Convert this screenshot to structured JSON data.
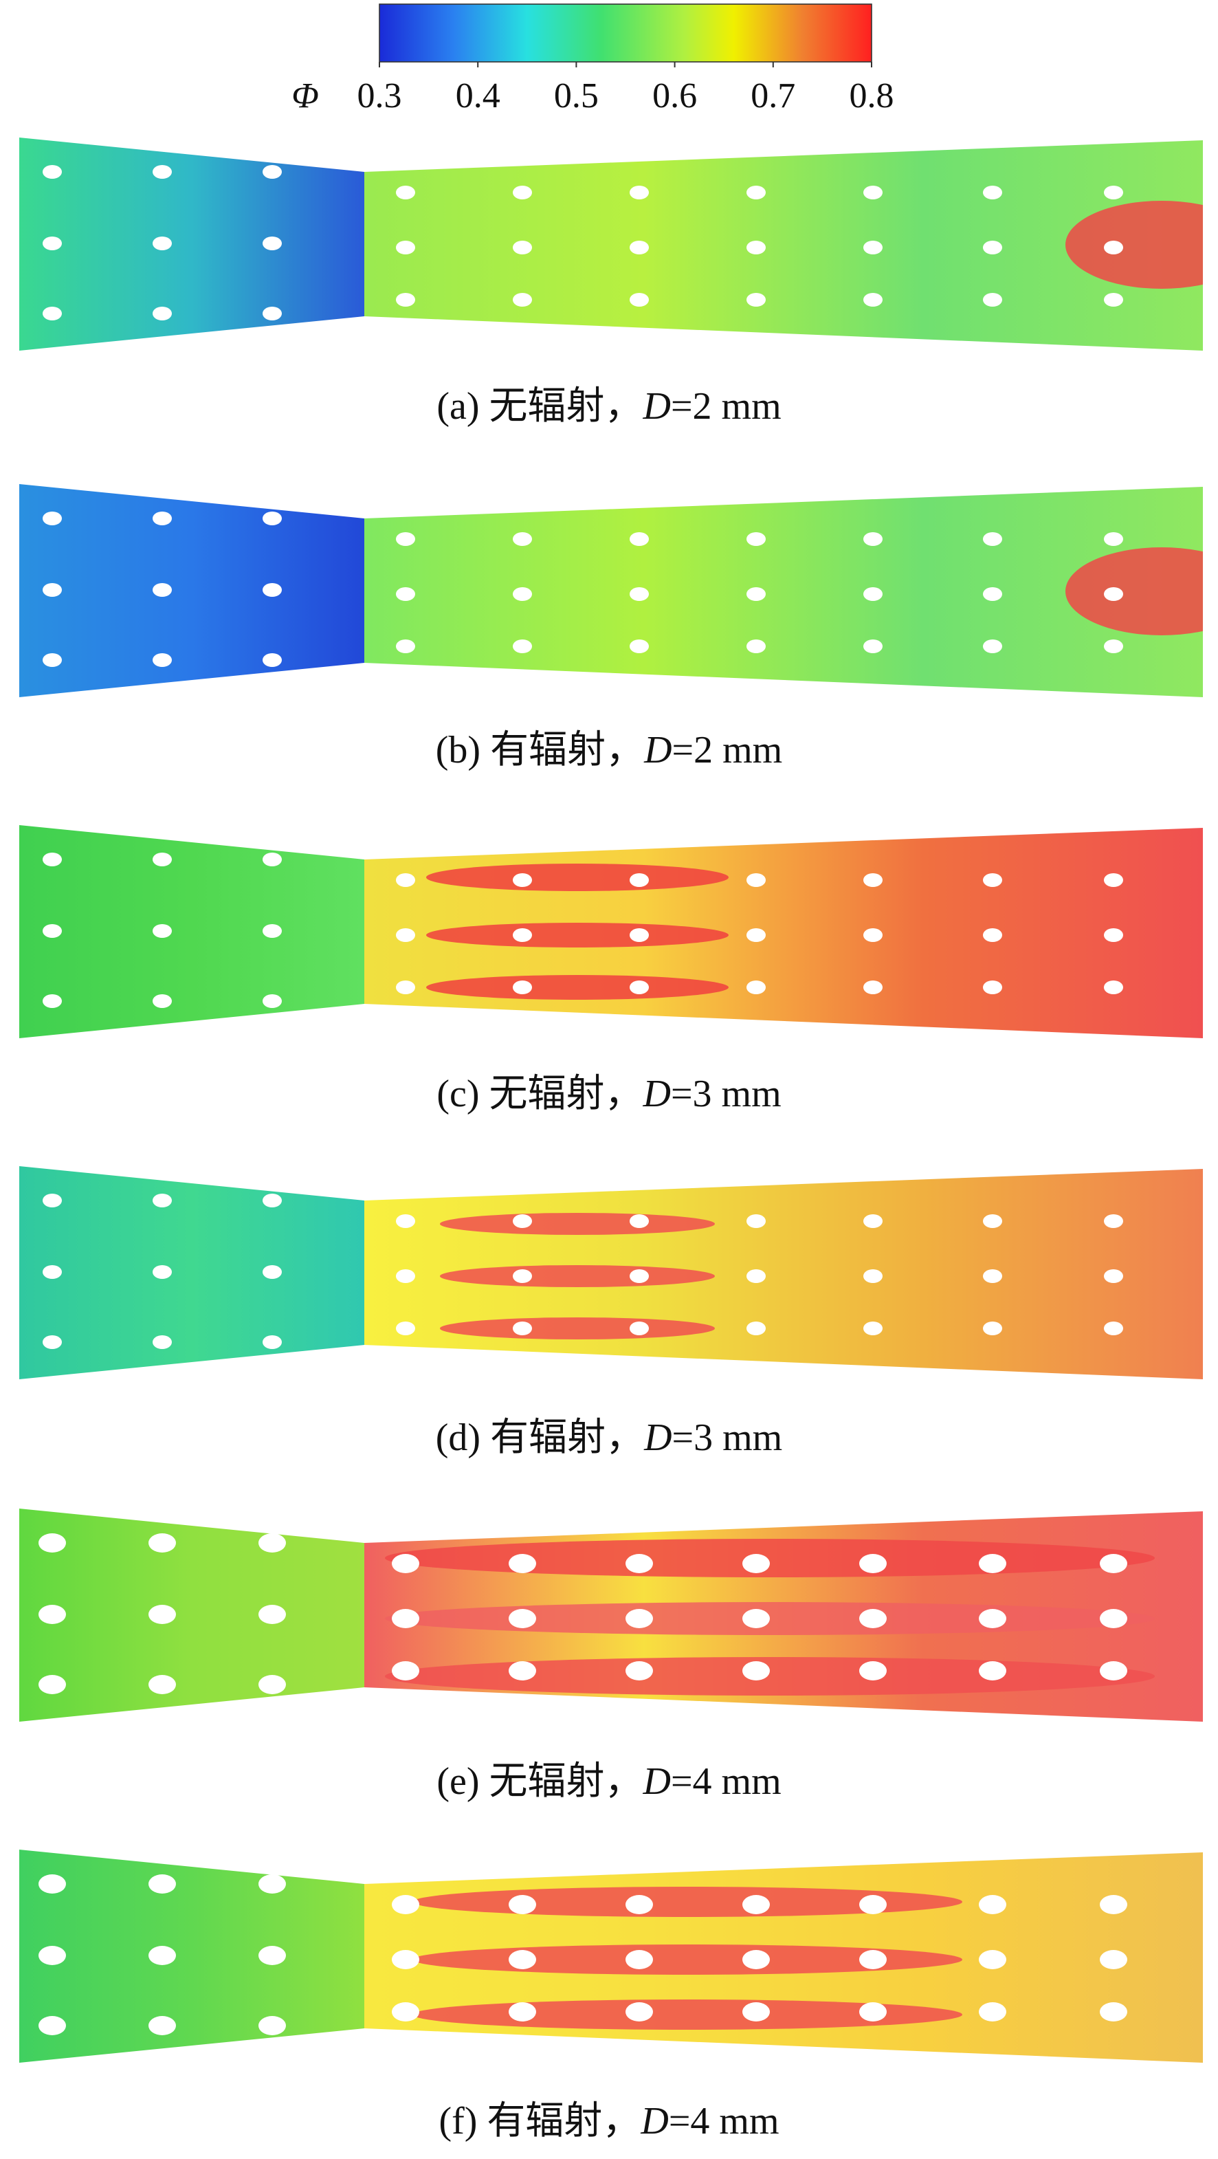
{
  "colorbar": {
    "label": "Φ",
    "ticks": [
      0.3,
      0.4,
      0.5,
      0.6,
      0.7,
      0.8
    ],
    "lim": [
      0.3,
      0.8
    ]
  },
  "panels": [
    {
      "caption": {
        "prefix": "(a) 无辐射，",
        "variable": "D",
        "suffix": "=2 mm"
      }
    },
    {
      "caption": {
        "prefix": "(b) 有辐射，",
        "variable": "D",
        "suffix": "=2 mm"
      }
    },
    {
      "caption": {
        "prefix": "(c) 无辐射，",
        "variable": "D",
        "suffix": "=3 mm"
      }
    },
    {
      "caption": {
        "prefix": "(d) 有辐射，",
        "variable": "D",
        "suffix": "=3 mm"
      }
    },
    {
      "caption": {
        "prefix": "(e) 无辐射，",
        "variable": "D",
        "suffix": "=4 mm"
      }
    },
    {
      "caption": {
        "prefix": "(f) 有辐射，",
        "variable": "D",
        "suffix": "=4 mm"
      }
    }
  ]
}
